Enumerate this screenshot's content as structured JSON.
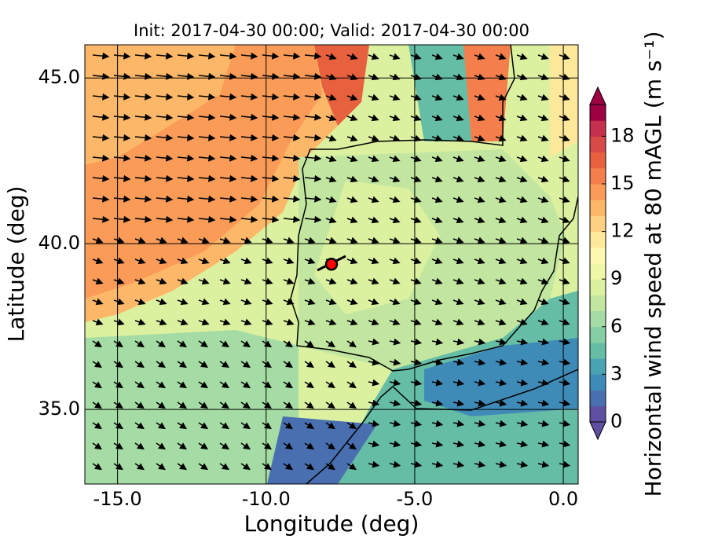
{
  "chart_data": {
    "type": "contour-map",
    "title": "Init: 2017-04-30 00:00; Valid: 2017-04-30 00:00",
    "xlabel": "Longitude (deg)",
    "ylabel": "Latitude (deg)",
    "xlim": [
      -16.1,
      0.5
    ],
    "ylim": [
      32.75,
      46.0
    ],
    "xticks": [
      {
        "value": -15,
        "label": "-15.0"
      },
      {
        "value": -10,
        "label": "-10.0"
      },
      {
        "value": -5,
        "label": "-5.0"
      },
      {
        "value": 0,
        "label": "0.0"
      }
    ],
    "yticks": [
      {
        "value": 35,
        "label": "35.0"
      },
      {
        "value": 40,
        "label": "40.0"
      },
      {
        "value": 45,
        "label": "45.0"
      }
    ],
    "grid": true,
    "site": {
      "x": -7.8,
      "y": 39.38,
      "color": "#ff0000"
    },
    "colorbar": {
      "label": "Horizontal wind speed at 80 mAGL (m s⁻¹)",
      "lim": [
        0,
        20
      ],
      "ticks": [
        0,
        3,
        6,
        9,
        12,
        15,
        18
      ],
      "colors": [
        "#5e4fa2",
        "#4a6fb0",
        "#3f8bb8",
        "#4aa3b2",
        "#66bda5",
        "#86cfa5",
        "#a5dba4",
        "#c2e6a0",
        "#dcf1a0",
        "#eff8a6",
        "#fbf8b0",
        "#fee89a",
        "#fed081",
        "#fdb768",
        "#fa9b58",
        "#f57f4c",
        "#e8613f",
        "#d84a48",
        "#c4304d",
        "#9e0142"
      ]
    }
  }
}
